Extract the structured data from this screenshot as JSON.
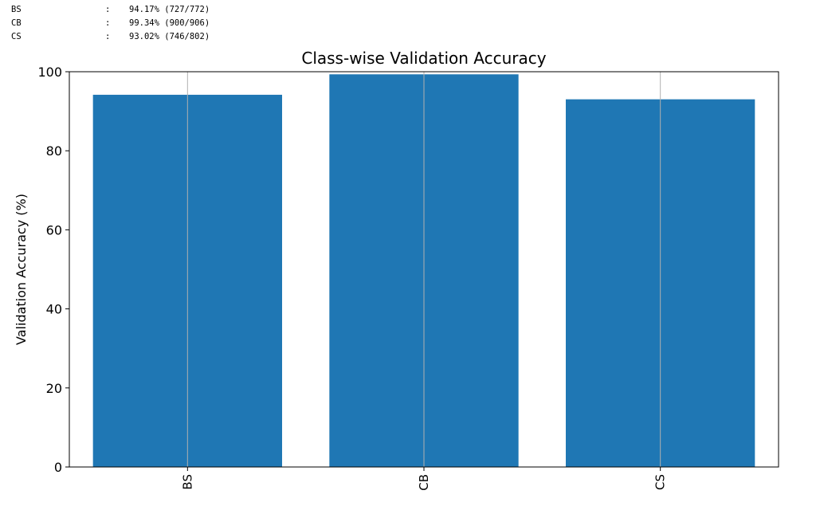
{
  "console": {
    "lines": [
      {
        "name": "BS",
        "sep": ":",
        "value": "94.17% (727/772)"
      },
      {
        "name": "CB",
        "sep": ":",
        "value": "99.34% (900/906)"
      },
      {
        "name": "CS",
        "sep": ":",
        "value": "93.02% (746/802)"
      }
    ]
  },
  "chart_data": {
    "type": "bar",
    "title": "Class-wise Validation Accuracy",
    "xlabel": "",
    "ylabel": "Validation Accuracy (%)",
    "categories": [
      "BS",
      "CB",
      "CS"
    ],
    "values": [
      94.17,
      99.34,
      93.02
    ],
    "ylim": [
      0,
      100
    ],
    "yticks": [
      0,
      20,
      40,
      60,
      80,
      100
    ],
    "grid": "x",
    "bar_color": "#1f77b4",
    "grid_color": "#b0b0b0"
  }
}
